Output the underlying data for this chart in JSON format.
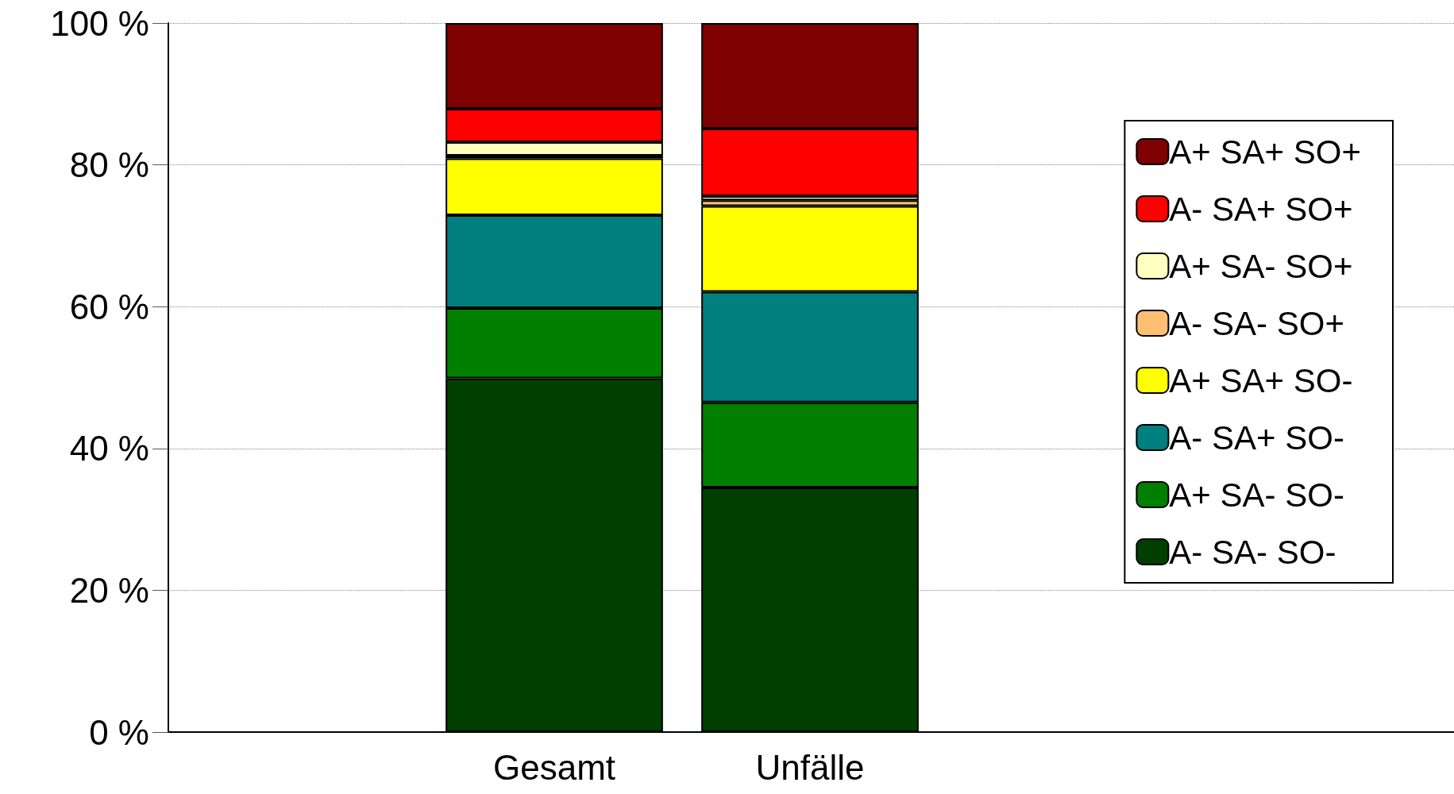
{
  "chart_data": {
    "type": "bar",
    "stacked": true,
    "categories": [
      "Gesamt",
      "Unfälle"
    ],
    "series": [
      {
        "name": "A- SA- SO-",
        "color": "#003f00",
        "values": [
          49.9,
          34.5
        ]
      },
      {
        "name": "A+ SA- SO-",
        "color": "#007f00",
        "values": [
          9.9,
          12
        ]
      },
      {
        "name": "A- SA+ SO-",
        "color": "#007f7f",
        "values": [
          13.1,
          15.6
        ]
      },
      {
        "name": "A+ SA+ SO-",
        "color": "#ffff00",
        "values": [
          8,
          12.1
        ]
      },
      {
        "name": "A- SA- SO+",
        "color": "#ffbf72",
        "values": [
          0.4,
          0.8
        ]
      },
      {
        "name": "A+ SA- SO+",
        "color": "#ffffbf",
        "values": [
          1.9,
          0.6
        ]
      },
      {
        "name": "A- SA+ SO+",
        "color": "#ff0000",
        "values": [
          4.7,
          9.5
        ]
      },
      {
        "name": "A+ SA+ SO+",
        "color": "#7f0000",
        "values": [
          12.1,
          14.9
        ]
      }
    ],
    "ylim": [
      0,
      100
    ],
    "yticks": [
      {
        "value": 0,
        "label": "0 %"
      },
      {
        "value": 20,
        "label": "20 %"
      },
      {
        "value": 40,
        "label": "40 %"
      },
      {
        "value": 60,
        "label": "60 %"
      },
      {
        "value": 80,
        "label": "80 %"
      },
      {
        "value": 100,
        "label": "100 %"
      }
    ],
    "grid": "y",
    "legend": "right"
  }
}
